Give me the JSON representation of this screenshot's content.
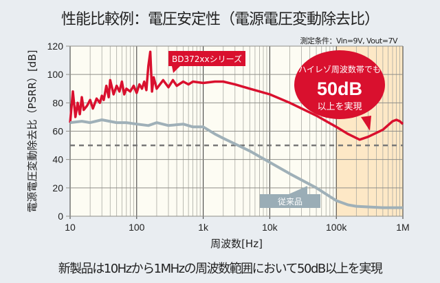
{
  "title": "性能比較例：電圧安定性（電源電圧変動除去比）",
  "condition": "測定条件：Vin=9V, Vout=7V",
  "footer": "新製品は10Hzから1MHzの周波数範囲において50dB以上を実現",
  "chart_data": {
    "type": "line",
    "title": "性能比較例：電圧安定性（電源電圧変動除去比）",
    "xlabel": "周波数[Hz]",
    "ylabel": "電源電圧変動除去比（PSRR）[dB]",
    "xscale": "log",
    "xlim": [
      10,
      1000000
    ],
    "ylim": [
      0,
      120
    ],
    "grid": true,
    "xticks": [
      10,
      100,
      1000,
      10000,
      100000,
      1000000
    ],
    "xtick_labels": [
      "10",
      "100",
      "1k",
      "10k",
      "100k",
      "1M"
    ],
    "yticks": [
      0,
      20,
      40,
      60,
      80,
      100,
      120
    ],
    "ytick_labels": [
      "0",
      "20",
      "40",
      "60",
      "80",
      "100",
      "120"
    ],
    "reference_line": {
      "y": 50,
      "style": "dashed"
    },
    "highlight_range": [
      100000,
      1000000
    ],
    "series": [
      {
        "name": "BD372xxシリーズ",
        "color": "#d9102e",
        "x": [
          10,
          11,
          12,
          13,
          14,
          15,
          16,
          18,
          20,
          22,
          25,
          28,
          30,
          32,
          35,
          38,
          40,
          45,
          50,
          55,
          60,
          65,
          70,
          80,
          90,
          100,
          110,
          120,
          130,
          140,
          150,
          160,
          170,
          180,
          200,
          250,
          300,
          350,
          400,
          500,
          600,
          700,
          1000,
          1500,
          2000,
          3000,
          5000,
          10000,
          20000,
          50000,
          100000,
          150000,
          224000,
          300000,
          500000,
          700000,
          800000,
          900000,
          1000000
        ],
        "y": [
          66,
          88,
          70,
          80,
          72,
          84,
          75,
          78,
          82,
          76,
          83,
          80,
          85,
          82,
          92,
          84,
          96,
          86,
          92,
          88,
          95,
          86,
          90,
          88,
          92,
          87,
          93,
          90,
          95,
          89,
          106,
          116,
          88,
          98,
          90,
          96,
          91,
          96,
          92,
          95,
          93,
          95,
          94,
          95,
          95,
          93,
          90,
          86,
          80,
          71,
          63,
          58,
          54,
          56,
          61,
          67,
          68,
          67,
          65
        ]
      },
      {
        "name": "従来品",
        "color": "#9fb0b8",
        "x": [
          10,
          15,
          20,
          30,
          50,
          70,
          100,
          150,
          200,
          300,
          500,
          700,
          1000,
          1500,
          2000,
          3000,
          5000,
          10000,
          20000,
          50000,
          100000,
          150000,
          200000,
          500000,
          1000000
        ],
        "y": [
          66,
          67,
          66,
          68,
          66,
          66,
          65,
          64,
          66,
          64,
          65,
          63,
          63,
          58,
          55,
          51,
          46,
          38,
          30,
          20,
          11,
          8,
          7,
          6,
          6
        ]
      }
    ],
    "annotations": {
      "callout_line1": "ハイレゾ周波数帯でも",
      "callout_big": "50dB",
      "callout_line2": "以上を実現"
    }
  }
}
